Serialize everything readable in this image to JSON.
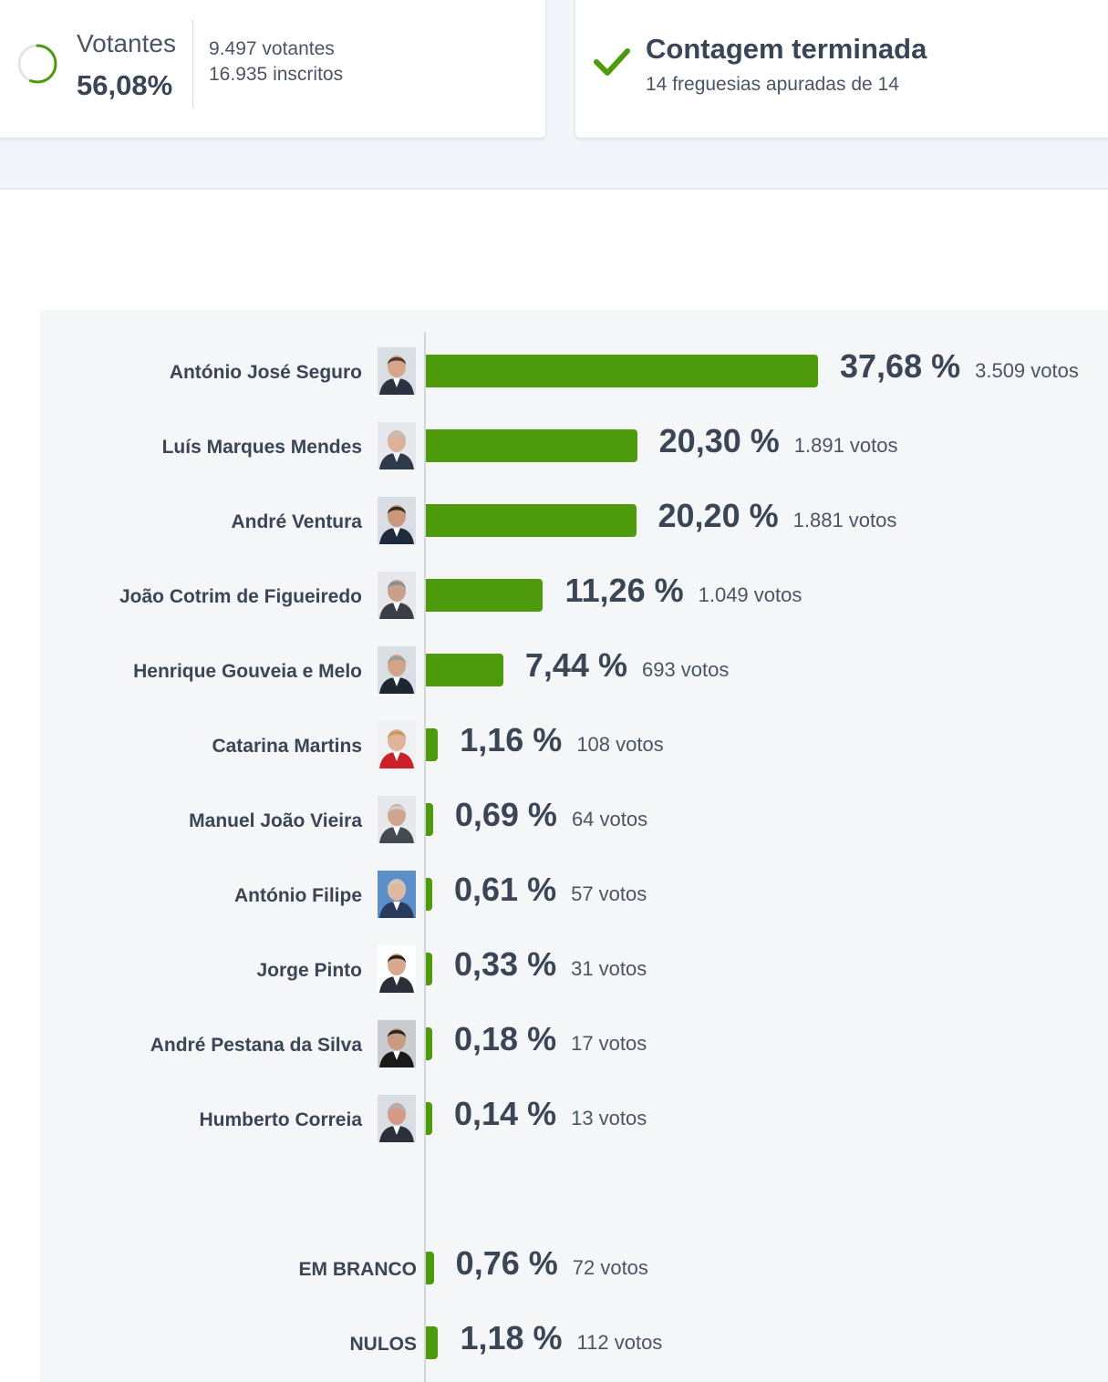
{
  "summary": {
    "votantes_label": "Votantes",
    "votantes_pct": "56,08%",
    "votantes_fraction": 0.5608,
    "votantes_count": "9.497 votantes",
    "inscritos_count": "16.935 inscritos"
  },
  "status": {
    "title": "Contagem terminada",
    "subtitle": "14 freguesias apuradas de 14"
  },
  "colors": {
    "accent": "#4e9a0d",
    "text": "#3a4555",
    "chart_bg": "#f4f6f8"
  },
  "chart_data": {
    "type": "bar",
    "orientation": "horizontal",
    "title": "",
    "xlabel": "",
    "ylabel": "",
    "xlim": [
      0,
      37.68
    ],
    "candidates": [
      {
        "name": "António José Seguro",
        "value": 37.68,
        "pct_label": "37,68 %",
        "votes_label": "3.509 votos"
      },
      {
        "name": "Luís Marques Mendes",
        "value": 20.3,
        "pct_label": "20,30 %",
        "votes_label": "1.891 votos"
      },
      {
        "name": "André Ventura",
        "value": 20.2,
        "pct_label": "20,20 %",
        "votes_label": "1.881 votos"
      },
      {
        "name": "João Cotrim de Figueiredo",
        "value": 11.26,
        "pct_label": "11,26 %",
        "votes_label": "1.049 votos"
      },
      {
        "name": "Henrique Gouveia e Melo",
        "value": 7.44,
        "pct_label": "7,44 %",
        "votes_label": "693 votos"
      },
      {
        "name": "Catarina Martins",
        "value": 1.16,
        "pct_label": "1,16 %",
        "votes_label": "108 votos"
      },
      {
        "name": "Manuel João Vieira",
        "value": 0.69,
        "pct_label": "0,69 %",
        "votes_label": "64 votos"
      },
      {
        "name": "António Filipe",
        "value": 0.61,
        "pct_label": "0,61 %",
        "votes_label": "57 votos"
      },
      {
        "name": "Jorge Pinto",
        "value": 0.33,
        "pct_label": "0,33 %",
        "votes_label": "31 votos"
      },
      {
        "name": "André Pestana da Silva",
        "value": 0.18,
        "pct_label": "0,18 %",
        "votes_label": "17 votos"
      },
      {
        "name": "Humberto Correia",
        "value": 0.14,
        "pct_label": "0,14 %",
        "votes_label": "13 votos"
      }
    ],
    "extras": [
      {
        "name": "EM BRANCO",
        "value": 0.76,
        "pct_label": "0,76 %",
        "votes_label": "72 votos"
      },
      {
        "name": "NULOS",
        "value": 1.18,
        "pct_label": "1,18 %",
        "votes_label": "112 votos"
      }
    ]
  }
}
